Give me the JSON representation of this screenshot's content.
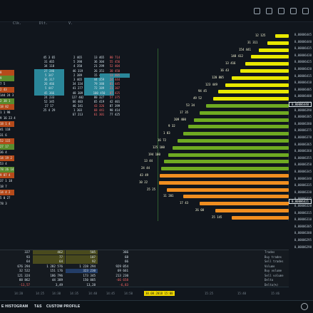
{
  "header": {
    "column_labels": [
      "Clk.",
      "Dlt.",
      "V."
    ]
  },
  "ticks": [
    "8",
    "9",
    "7 5",
    "2 43",
    "144 24 3",
    "2 38 1",
    "18 82",
    "1 1 98",
    "9 16 23 4",
    "18 1 4",
    "41 118",
    "31 6",
    "52 115",
    "27 17",
    "36 4",
    "14 19 2",
    "53 4",
    "78 26 14",
    "9 87 4",
    "37 1 18",
    "18 7",
    "14 4 2",
    "5 0 27",
    "78 3"
  ],
  "books": [
    [
      "2 465",
      "5 398",
      "4 350",
      "46 319",
      "2 389",
      "3 465",
      "34 334",
      "41 277",
      "48 309",
      "127 402",
      "66 403",
      "46 341",
      "1 303",
      "67 213"
    ],
    [
      "45 3 65",
      "31 465",
      "34 118",
      "27 246",
      "5 347",
      "36 317",
      "26 466",
      "5 447",
      "45 366",
      "24 233",
      "52 345",
      "27 17",
      "25 4 29"
    ],
    [
      "13 465",
      "36 304",
      "21 299",
      "26 351",
      "15 417",
      "44 359",
      "79 388",
      "72 389",
      "100 450",
      "80 327",
      "65 419",
      "43 326",
      "68 441",
      "61 301"
    ],
    [
      "80 714",
      "55 456",
      "52 404",
      "38 450",
      "13 405",
      "24 444",
      "81 445",
      "21 307",
      "87 425",
      "57 375",
      "42 401",
      "87 399",
      "98 414",
      "77 425"
    ]
  ],
  "histogram": {
    "labels": [
      "12 125",
      "31 311",
      "154 441",
      "148 412",
      "13 416",
      "16 43",
      "120 805",
      "123 449",
      "94 45",
      "49 52",
      "53 34",
      "17 35",
      "209 400",
      "9 32",
      "1 83",
      "16 72",
      "125 100",
      "194 100",
      "13 44",
      "24 44",
      "43 49",
      "10 22",
      "25 25",
      "11 201",
      "17 43",
      "26 08",
      "25 145"
    ],
    "values": [
      0.1,
      0.16,
      0.22,
      0.28,
      0.32,
      0.36,
      0.42,
      0.47,
      0.52,
      0.56,
      0.61,
      0.66,
      0.7,
      0.74,
      0.78,
      0.82,
      0.86,
      0.89,
      0.92,
      0.94,
      0.95,
      0.96,
      0.9,
      0.78,
      0.66,
      0.54,
      0.42
    ]
  },
  "price_axis": [
    "0,00006445",
    "0,00006440",
    "0,00006435",
    "0,00006430",
    "0,00006425",
    "0,00006420",
    "0,00006415",
    "0,00006410",
    "0,00006405",
    "0,00006400",
    "0,00006395",
    "0,00006390",
    "0,00006385",
    "0,00006380",
    "0,00006375",
    "0,00006370",
    "0,00006365",
    "0,00006360",
    "0,00006355",
    "0,00006350",
    "0,00006345",
    "0,00006340",
    "0,00006335",
    "0,00006330",
    "0,00006325",
    "0,00006320",
    "0,00006315",
    "0,00006310",
    "0,00006305",
    "0,00006300",
    "0,00006295",
    "0,00006290"
  ],
  "current_prices": [
    "0,00006440",
    "0,00006421"
  ],
  "stats": [
    [
      "327",
      "93",
      "64",
      "676 294",
      "32 522",
      "121 324",
      "88 862",
      "-13,57"
    ],
    [
      "462",
      "77",
      "64",
      "1 282 576",
      "151 176",
      "186 796",
      "44 389",
      "3,49"
    ],
    [
      "505",
      "107",
      "92",
      "1 228 294",
      "323 230",
      "173 345",
      "150 885",
      "13,28"
    ],
    [
      "366",
      "68",
      "66",
      "929 054",
      "69 661",
      "213 230",
      "-66 658",
      "-6,83"
    ]
  ],
  "stat_labels": [
    "Trades",
    "Buy trades",
    "Sell trades",
    "Volume",
    "Buy volume",
    "Sell volume",
    "Delta",
    "Delta(%)"
  ],
  "time_axis": [
    "14:20",
    "14:25",
    "14:30",
    "14:35",
    "14:40",
    "14:45",
    "14:50",
    "30.08.2018 15:00",
    "15:25",
    "15:40",
    "15:46"
  ],
  "tabs": [
    "E HISTOGRAM",
    "T&S",
    "CUSTOM PROFILE"
  ]
}
